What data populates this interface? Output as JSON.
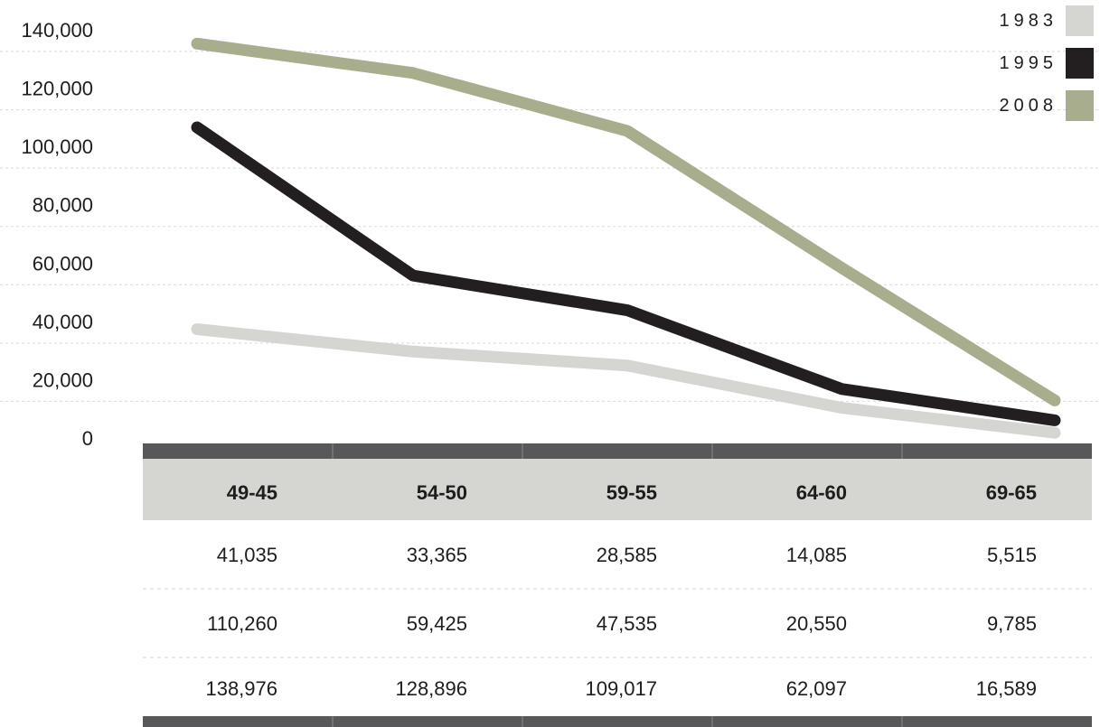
{
  "chart_data": {
    "type": "line",
    "categories": [
      "49-45",
      "54-50",
      "59-55",
      "64-60",
      "69-65"
    ],
    "series": [
      {
        "name": "1983",
        "color": "#d5d6d2",
        "values": [
          41035,
          33365,
          28585,
          14085,
          5515
        ],
        "labels": [
          "41,035",
          "33,365",
          "28,585",
          "14,085",
          "5,515"
        ]
      },
      {
        "name": "1995",
        "color": "#231f20",
        "values": [
          110260,
          59425,
          47535,
          20550,
          9785
        ],
        "labels": [
          "110,260",
          "59,425",
          "47,535",
          "20,550",
          "9,785"
        ]
      },
      {
        "name": "2008",
        "color": "#a7ad8d",
        "values": [
          138976,
          128896,
          109017,
          62097,
          16589
        ],
        "labels": [
          "138,976",
          "128,896",
          "109,017",
          "62,097",
          "16,589"
        ]
      }
    ],
    "y_ticks": [
      "0",
      "20,000",
      "40,000",
      "60,000",
      "80,000",
      "100,000",
      "120,000",
      "140,000"
    ],
    "y_tick_values": [
      0,
      20000,
      40000,
      60000,
      80000,
      100000,
      120000,
      140000
    ],
    "ylim": [
      0,
      140000
    ],
    "grid": true,
    "legend": "top-right",
    "table_header_bg": "#d5d6d2",
    "table_bar_color": "#58585a"
  }
}
